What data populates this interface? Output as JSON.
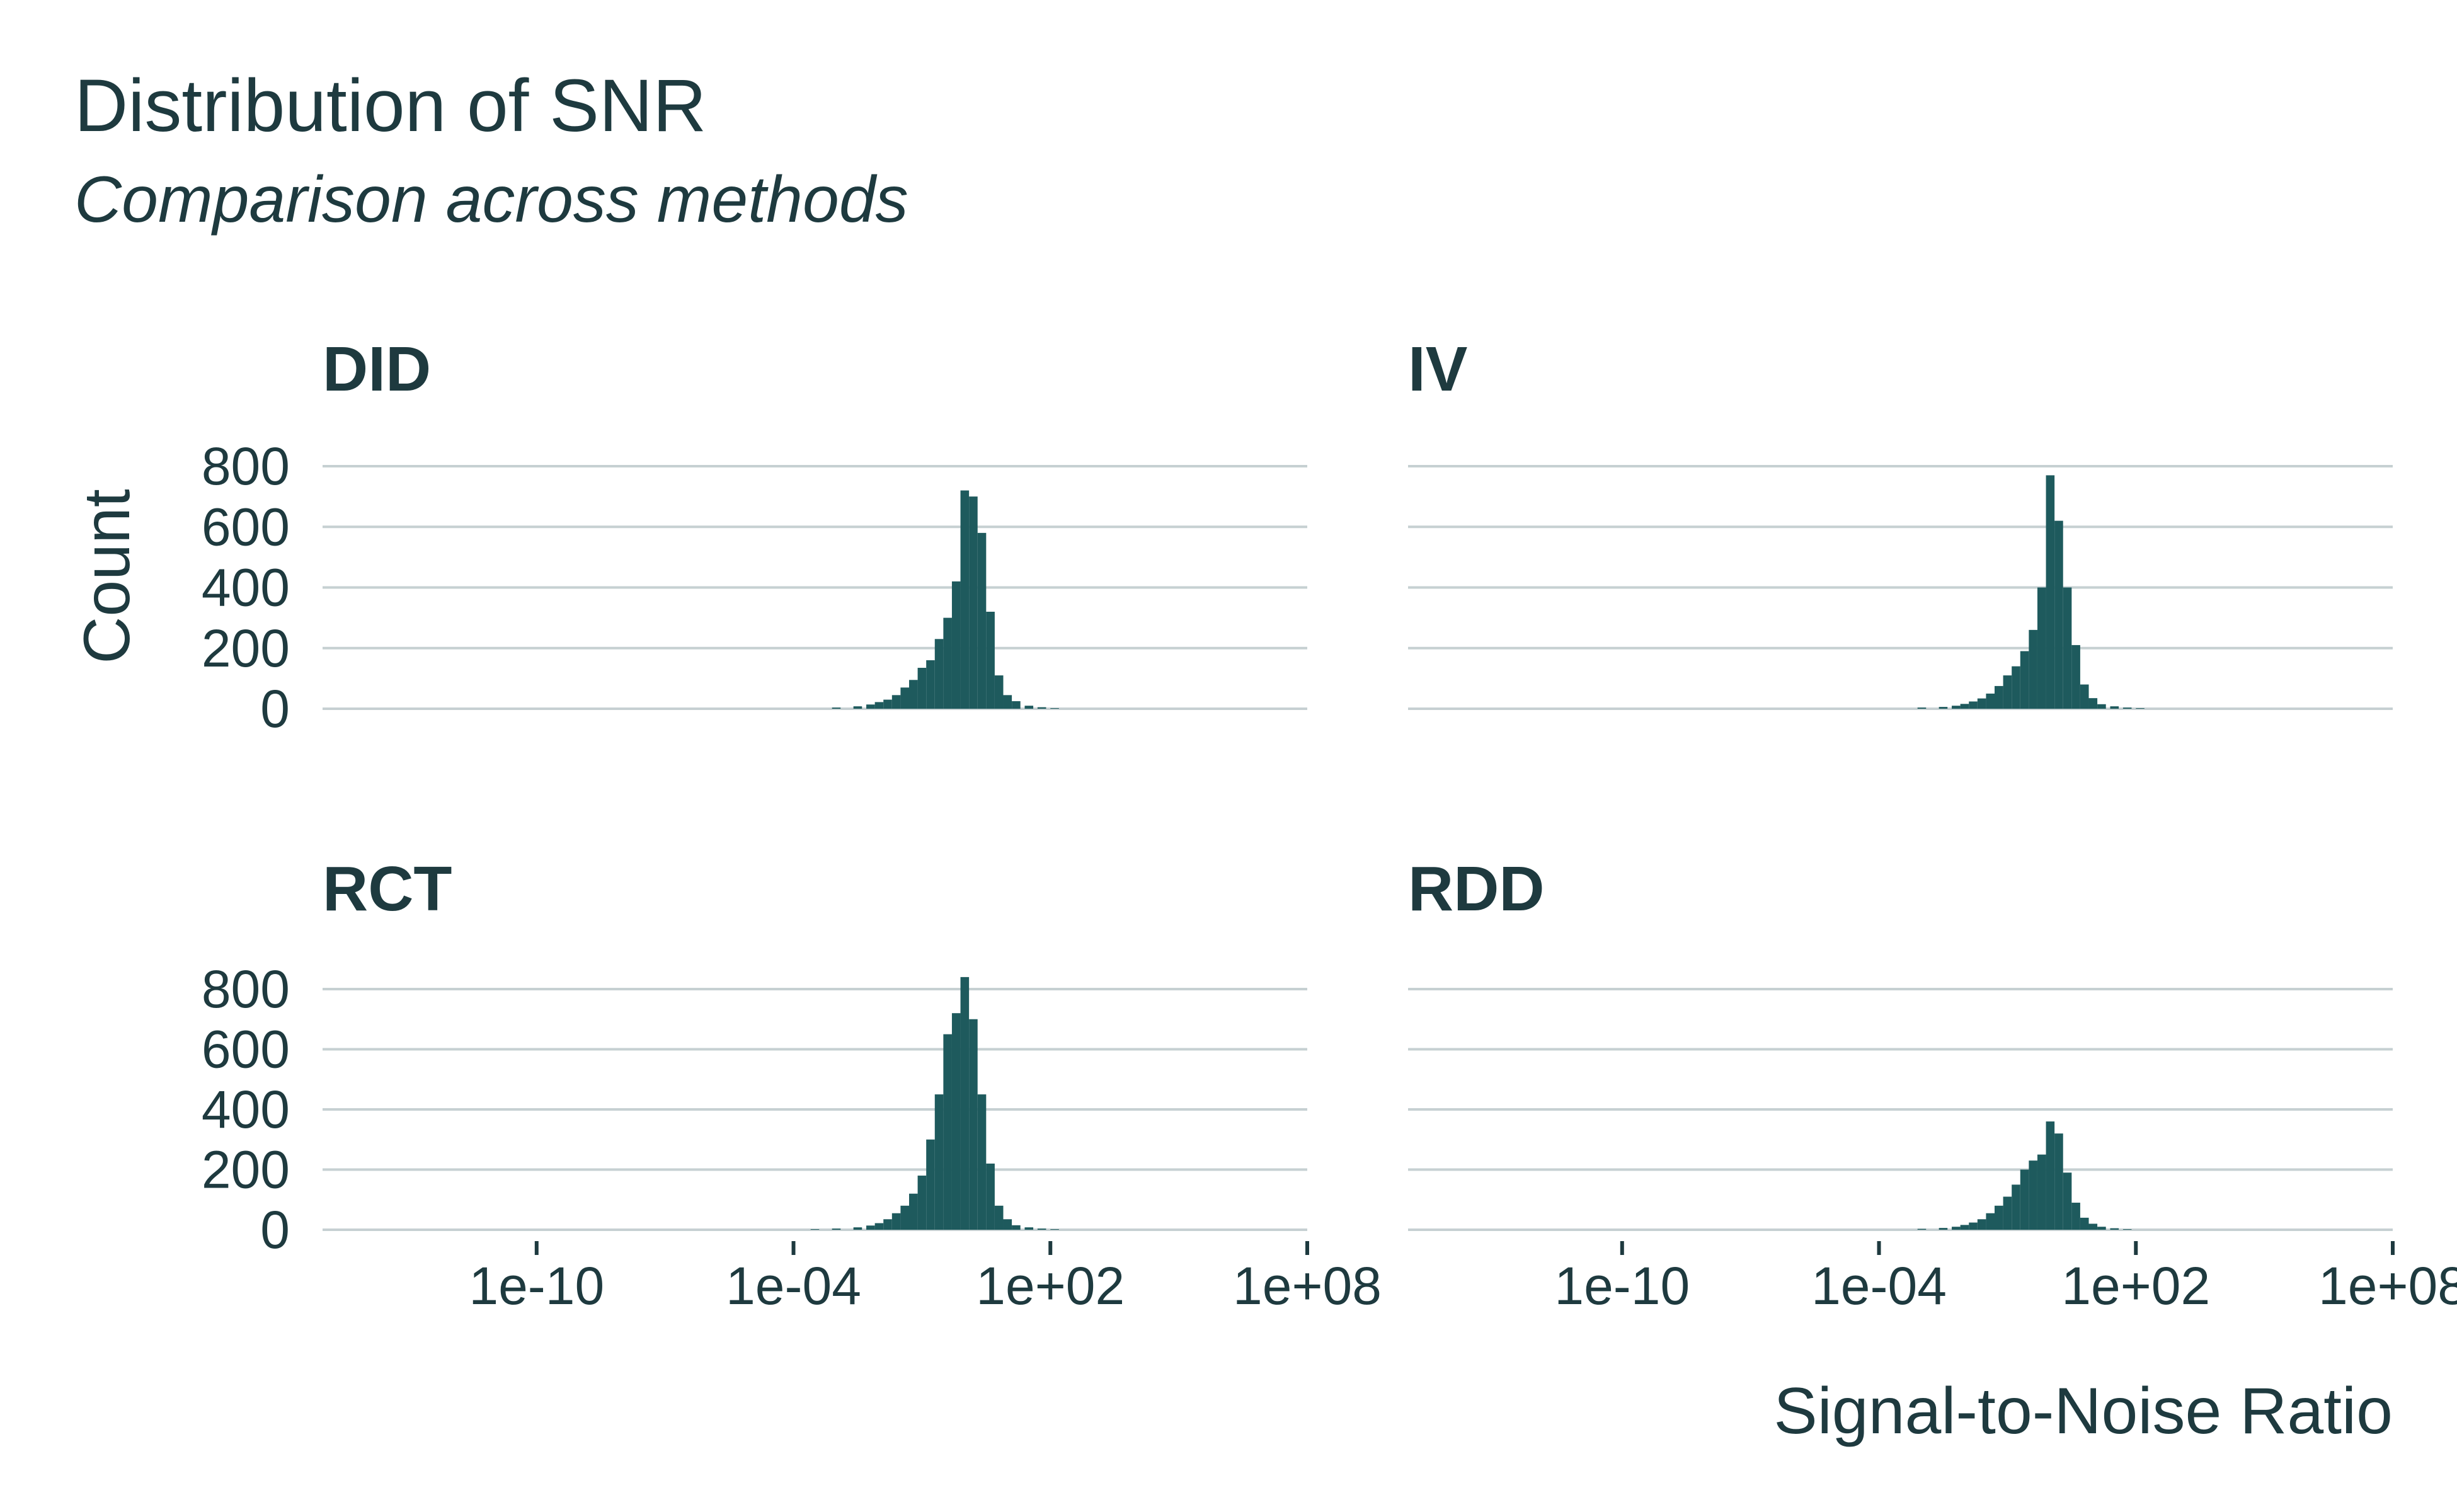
{
  "title": "Distribution of SNR",
  "subtitle": "Comparison across methods",
  "chart_data": {
    "type": "bar",
    "title": "Distribution of SNR",
    "subtitle": "Comparison across methods",
    "xlabel": "Signal-to-Noise Ratio",
    "ylabel": "Count",
    "x_scale": "log10",
    "x_ticks": [
      "1e-10",
      "1e-04",
      "1e+02",
      "1e+08"
    ],
    "x_tick_values": [
      1e-10,
      0.0001,
      100,
      100000000
    ],
    "xlim": [
      1e-15,
      100000000
    ],
    "y_ticks": [
      0,
      200,
      400,
      600,
      800
    ],
    "ylim": [
      0,
      800
    ],
    "grid": true,
    "legend": "none",
    "bar_color": "#1e5a5d",
    "grid_color": "#c6d0d2",
    "text_color": "#1e3a3f",
    "facets": [
      {
        "name": "DID",
        "bins_log10_center": [
          -3.0,
          -2.5,
          -2.2,
          -2.0,
          -1.8,
          -1.6,
          -1.4,
          -1.2,
          -1.0,
          -0.8,
          -0.6,
          -0.4,
          -0.2,
          0.0,
          0.2,
          0.4,
          0.6,
          0.8,
          1.0,
          1.2,
          1.5,
          1.8,
          2.1
        ],
        "counts": [
          4,
          8,
          14,
          22,
          30,
          45,
          70,
          95,
          135,
          160,
          230,
          300,
          420,
          720,
          700,
          580,
          320,
          110,
          45,
          25,
          10,
          5,
          2
        ]
      },
      {
        "name": "IV",
        "bins_log10_center": [
          -3.0,
          -2.5,
          -2.2,
          -2.0,
          -1.8,
          -1.6,
          -1.4,
          -1.2,
          -1.0,
          -0.8,
          -0.6,
          -0.4,
          -0.2,
          0.0,
          0.2,
          0.4,
          0.6,
          0.8,
          1.0,
          1.2,
          1.5,
          1.8,
          2.1
        ],
        "counts": [
          4,
          6,
          10,
          16,
          24,
          34,
          50,
          75,
          110,
          140,
          190,
          260,
          400,
          770,
          620,
          400,
          210,
          80,
          35,
          15,
          8,
          4,
          2
        ]
      },
      {
        "name": "RCT",
        "bins_log10_center": [
          -3.5,
          -3.0,
          -2.5,
          -2.2,
          -2.0,
          -1.8,
          -1.6,
          -1.4,
          -1.2,
          -1.0,
          -0.8,
          -0.6,
          -0.4,
          -0.2,
          0.0,
          0.2,
          0.4,
          0.6,
          0.8,
          1.0,
          1.2,
          1.5,
          1.8,
          2.1
        ],
        "counts": [
          2,
          4,
          8,
          14,
          22,
          35,
          55,
          80,
          120,
          180,
          300,
          450,
          650,
          720,
          840,
          700,
          450,
          220,
          80,
          35,
          15,
          8,
          4,
          2
        ]
      },
      {
        "name": "RDD",
        "bins_log10_center": [
          -3.0,
          -2.5,
          -2.2,
          -2.0,
          -1.8,
          -1.6,
          -1.4,
          -1.2,
          -1.0,
          -0.8,
          -0.6,
          -0.4,
          -0.2,
          0.0,
          0.2,
          0.4,
          0.6,
          0.8,
          1.0,
          1.2,
          1.5,
          1.8
        ],
        "counts": [
          3,
          6,
          10,
          16,
          24,
          35,
          55,
          80,
          110,
          150,
          200,
          230,
          250,
          360,
          320,
          190,
          90,
          40,
          20,
          10,
          5,
          2
        ]
      }
    ]
  }
}
